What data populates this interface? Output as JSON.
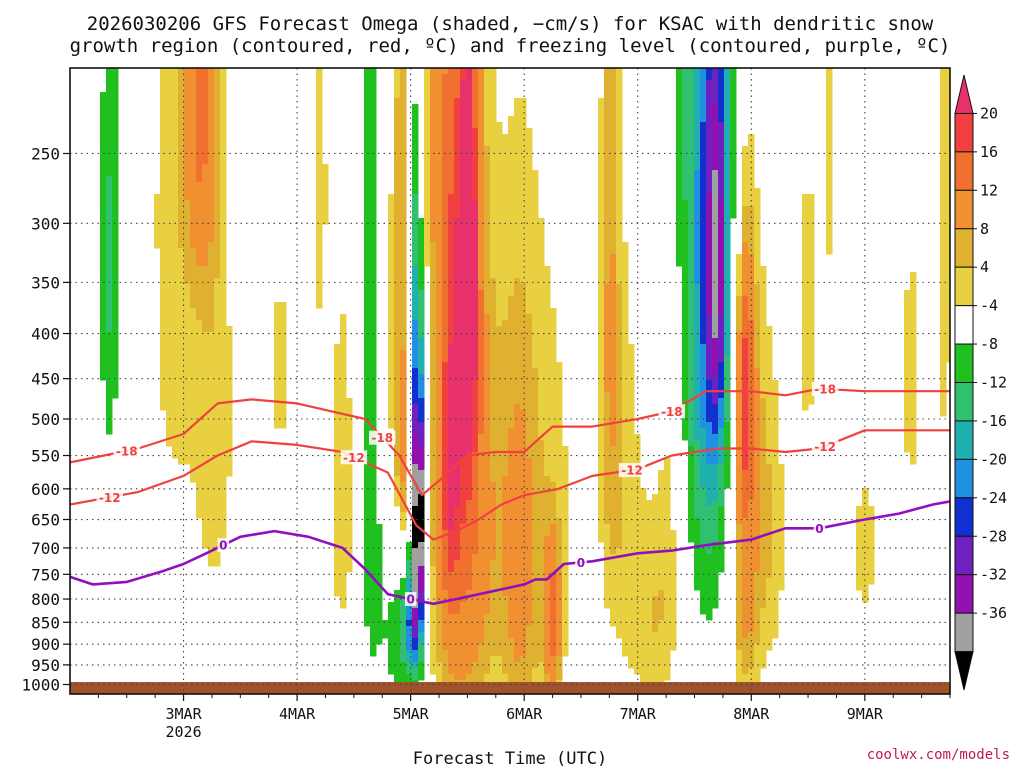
{
  "title": {
    "line1": "2026030206 GFS Forecast Omega (shaded, −cm/s) for KSAC with dendritic snow",
    "line2": "growth region (contoured, red, ºC) and freezing level (contoured, purple, ºC)"
  },
  "credit": "coolwx.com/models",
  "colors": {
    "dgz_contour": "#f04040",
    "freezing_contour": "#9010c0",
    "ground": "#a0522d"
  },
  "chart_data": {
    "type": "heatmap",
    "xlabel": "Forecast Time (UTC)",
    "ylabel": "",
    "x_ticks": [
      {
        "label": "3MAR",
        "sub": "2026",
        "day": 1.0
      },
      {
        "label": "4MAR",
        "sub": "",
        "day": 2.0
      },
      {
        "label": "5MAR",
        "sub": "",
        "day": 3.0
      },
      {
        "label": "6MAR",
        "sub": "",
        "day": 4.0
      },
      {
        "label": "7MAR",
        "sub": "",
        "day": 5.0
      },
      {
        "label": "8MAR",
        "sub": "",
        "day": 6.0
      },
      {
        "label": "9MAR",
        "sub": "",
        "day": 7.0
      }
    ],
    "xlim_days_from_2MAR": [
      0.0,
      7.75
    ],
    "y_ticks": [
      250,
      300,
      350,
      400,
      450,
      500,
      550,
      600,
      650,
      700,
      750,
      800,
      850,
      900,
      950,
      1000
    ],
    "ylim_hPa": [
      200,
      1025
    ],
    "grid": true,
    "colorbar": {
      "labels": [
        "20",
        "16",
        "12",
        "8",
        "4",
        "-4",
        "-8",
        "-12",
        "-16",
        "-20",
        "-24",
        "-28",
        "-32",
        "-36"
      ],
      "bins": [
        {
          "color": "#e8306a",
          "kind": "tri-top"
        },
        {
          "color": "#f04040",
          "kind": "box"
        },
        {
          "color": "#f07030",
          "kind": "box"
        },
        {
          "color": "#f09030",
          "kind": "box"
        },
        {
          "color": "#e0b030",
          "kind": "box"
        },
        {
          "color": "#e8d040",
          "kind": "box"
        },
        {
          "color": "#ffffff",
          "kind": "box"
        },
        {
          "color": "#20c020",
          "kind": "box"
        },
        {
          "color": "#30c070",
          "kind": "box"
        },
        {
          "color": "#20b0b0",
          "kind": "box"
        },
        {
          "color": "#2090e0",
          "kind": "box"
        },
        {
          "color": "#1030d0",
          "kind": "box"
        },
        {
          "color": "#7020c0",
          "kind": "box"
        },
        {
          "color": "#9010b0",
          "kind": "box"
        },
        {
          "color": "#a0a0a0",
          "kind": "box"
        },
        {
          "color": "#000000",
          "kind": "tri-bottom"
        }
      ]
    },
    "blobs": [
      {
        "day": 0.35,
        "p": 330,
        "dd": 0.06,
        "dp": 150,
        "value": -9
      },
      {
        "day": 0.9,
        "p": 300,
        "dd": 0.2,
        "dp": 350,
        "value": 5
      },
      {
        "day": 1.15,
        "p": 220,
        "dd": 0.1,
        "dp": 80,
        "value": 9
      },
      {
        "day": 1.3,
        "p": 500,
        "dd": 0.15,
        "dp": 300,
        "value": 5
      },
      {
        "day": 1.85,
        "p": 440,
        "dd": 0.08,
        "dp": 120,
        "value": 5
      },
      {
        "day": 2.2,
        "p": 250,
        "dd": 0.05,
        "dp": 150,
        "value": 5
      },
      {
        "day": 2.4,
        "p": 600,
        "dd": 0.1,
        "dp": 250,
        "value": 6
      },
      {
        "day": 2.65,
        "p": 400,
        "dd": 0.08,
        "dp": 400,
        "value": -9
      },
      {
        "day": 2.85,
        "p": 550,
        "dd": 0.12,
        "dp": 400,
        "value": 5
      },
      {
        "day": 3.0,
        "p": 350,
        "dd": 0.07,
        "dp": 150,
        "value": -13
      },
      {
        "day": 2.9,
        "p": 850,
        "dd": 0.12,
        "dp": 180,
        "value": -10
      },
      {
        "day": 3.0,
        "p": 850,
        "dd": 0.06,
        "dp": 80,
        "value": -15
      },
      {
        "day": 3.05,
        "p": 620,
        "dd": 0.04,
        "dp": 200,
        "value": -22
      },
      {
        "day": 3.07,
        "p": 650,
        "dd": 0.025,
        "dp": 130,
        "value": -38
      },
      {
        "day": 2.95,
        "p": 420,
        "dd": 0.06,
        "dp": 250,
        "value": 12
      },
      {
        "day": 3.3,
        "p": 480,
        "dd": 0.18,
        "dp": 450,
        "value": 7
      },
      {
        "day": 3.5,
        "p": 370,
        "dd": 0.08,
        "dp": 180,
        "value": 16
      },
      {
        "day": 3.5,
        "p": 340,
        "dd": 0.04,
        "dp": 80,
        "value": 20
      },
      {
        "day": 3.35,
        "p": 550,
        "dd": 0.06,
        "dp": 150,
        "value": 13
      },
      {
        "day": 3.65,
        "p": 600,
        "dd": 0.15,
        "dp": 350,
        "value": 6
      },
      {
        "day": 3.45,
        "p": 850,
        "dd": 0.15,
        "dp": 200,
        "value": 5
      },
      {
        "day": 3.3,
        "p": 230,
        "dd": 0.12,
        "dp": 100,
        "value": 5
      },
      {
        "day": 3.95,
        "p": 750,
        "dd": 0.12,
        "dp": 350,
        "value": 6
      },
      {
        "day": 4.2,
        "p": 650,
        "dd": 0.25,
        "dp": 400,
        "value": 5
      },
      {
        "day": 4.25,
        "p": 850,
        "dd": 0.05,
        "dp": 120,
        "value": 10
      },
      {
        "day": 4.75,
        "p": 320,
        "dd": 0.06,
        "dp": 250,
        "value": 5
      },
      {
        "day": 4.85,
        "p": 550,
        "dd": 0.15,
        "dp": 300,
        "value": 5
      },
      {
        "day": 5.2,
        "p": 850,
        "dd": 0.2,
        "dp": 200,
        "value": 6
      },
      {
        "day": 5.55,
        "p": 300,
        "dd": 0.2,
        "dp": 400,
        "value": -9
      },
      {
        "day": 5.65,
        "p": 320,
        "dd": 0.12,
        "dp": 250,
        "value": -13
      },
      {
        "day": 5.7,
        "p": 340,
        "dd": 0.06,
        "dp": 120,
        "value": -17
      },
      {
        "day": 5.95,
        "p": 500,
        "dd": 0.12,
        "dp": 250,
        "value": 8
      },
      {
        "day": 5.95,
        "p": 470,
        "dd": 0.05,
        "dp": 100,
        "value": 12
      },
      {
        "day": 5.95,
        "p": 850,
        "dd": 0.1,
        "dp": 200,
        "value": 6
      },
      {
        "day": 6.5,
        "p": 380,
        "dd": 0.06,
        "dp": 200,
        "value": 5
      },
      {
        "day": 6.7,
        "p": 250,
        "dd": 0.05,
        "dp": 120,
        "value": 5
      },
      {
        "day": 7.0,
        "p": 700,
        "dd": 0.12,
        "dp": 150,
        "value": 5
      },
      {
        "day": 7.4,
        "p": 450,
        "dd": 0.06,
        "dp": 200,
        "value": 5
      },
      {
        "day": 7.7,
        "p": 300,
        "dd": 0.08,
        "dp": 300,
        "value": 5
      },
      {
        "day": 6.2,
        "p": 680,
        "dd": 0.1,
        "dp": 250,
        "value": 5
      },
      {
        "day": 5.3,
        "p": 520,
        "dd": 0.1,
        "dp": 180,
        "value": 5
      }
    ],
    "series": [
      {
        "name": "-18",
        "role": "dgz",
        "label_day": 1.35,
        "points": [
          [
            0.0,
            560
          ],
          [
            0.3,
            550
          ],
          [
            0.6,
            540
          ],
          [
            1.0,
            520
          ],
          [
            1.3,
            480
          ],
          [
            1.6,
            475
          ],
          [
            2.0,
            480
          ],
          [
            2.3,
            490
          ],
          [
            2.6,
            500
          ],
          [
            2.9,
            550
          ],
          [
            3.1,
            610
          ],
          [
            3.3,
            580
          ],
          [
            3.5,
            550
          ],
          [
            3.75,
            545
          ],
          [
            4.0,
            545
          ],
          [
            4.25,
            510
          ],
          [
            4.6,
            510
          ],
          [
            5.0,
            500
          ],
          [
            5.3,
            490
          ],
          [
            5.6,
            465
          ],
          [
            6.0,
            465
          ],
          [
            6.3,
            470
          ],
          [
            6.6,
            462
          ],
          [
            7.0,
            465
          ],
          [
            7.4,
            465
          ],
          [
            7.75,
            465
          ]
        ],
        "labels": [
          {
            "day": 0.5,
            "text": "-18"
          },
          {
            "day": 2.75,
            "text": "-18"
          },
          {
            "day": 5.3,
            "text": "-18"
          },
          {
            "day": 6.65,
            "text": "-18"
          }
        ]
      },
      {
        "name": "-12",
        "role": "dgz",
        "label_day": 1.0,
        "points": [
          [
            0.0,
            625
          ],
          [
            0.3,
            615
          ],
          [
            0.6,
            605
          ],
          [
            1.0,
            580
          ],
          [
            1.3,
            550
          ],
          [
            1.6,
            530
          ],
          [
            2.0,
            535
          ],
          [
            2.4,
            545
          ],
          [
            2.8,
            575
          ],
          [
            3.05,
            660
          ],
          [
            3.2,
            685
          ],
          [
            3.4,
            670
          ],
          [
            3.6,
            650
          ],
          [
            3.8,
            625
          ],
          [
            4.0,
            610
          ],
          [
            4.3,
            600
          ],
          [
            4.6,
            580
          ],
          [
            5.0,
            570
          ],
          [
            5.3,
            550
          ],
          [
            5.7,
            540
          ],
          [
            6.0,
            540
          ],
          [
            6.3,
            545
          ],
          [
            6.6,
            540
          ],
          [
            7.0,
            515
          ],
          [
            7.4,
            515
          ],
          [
            7.75,
            515
          ]
        ],
        "labels": [
          {
            "day": 0.35,
            "text": "-12"
          },
          {
            "day": 2.5,
            "text": "-12"
          },
          {
            "day": 4.95,
            "text": "-12"
          },
          {
            "day": 6.65,
            "text": "-12"
          }
        ]
      },
      {
        "name": "0",
        "role": "freezing",
        "label_day": 0.0,
        "points": [
          [
            0.0,
            755
          ],
          [
            0.2,
            770
          ],
          [
            0.5,
            765
          ],
          [
            0.8,
            745
          ],
          [
            1.0,
            730
          ],
          [
            1.2,
            710
          ],
          [
            1.5,
            680
          ],
          [
            1.8,
            670
          ],
          [
            2.1,
            680
          ],
          [
            2.4,
            700
          ],
          [
            2.6,
            740
          ],
          [
            2.8,
            790
          ],
          [
            3.0,
            800
          ],
          [
            3.2,
            810
          ],
          [
            3.4,
            800
          ],
          [
            3.7,
            785
          ],
          [
            4.0,
            770
          ],
          [
            4.1,
            760
          ],
          [
            4.2,
            760
          ],
          [
            4.35,
            730
          ],
          [
            4.6,
            725
          ],
          [
            5.0,
            710
          ],
          [
            5.3,
            705
          ],
          [
            5.6,
            695
          ],
          [
            6.0,
            685
          ],
          [
            6.3,
            665
          ],
          [
            6.6,
            665
          ],
          [
            7.0,
            650
          ],
          [
            7.3,
            640
          ],
          [
            7.6,
            625
          ],
          [
            7.75,
            620
          ]
        ],
        "labels": [
          {
            "day": 1.35,
            "text": "0"
          },
          {
            "day": 3.0,
            "text": "0"
          },
          {
            "day": 4.5,
            "text": "0"
          },
          {
            "day": 6.6,
            "text": "0"
          }
        ]
      }
    ]
  }
}
